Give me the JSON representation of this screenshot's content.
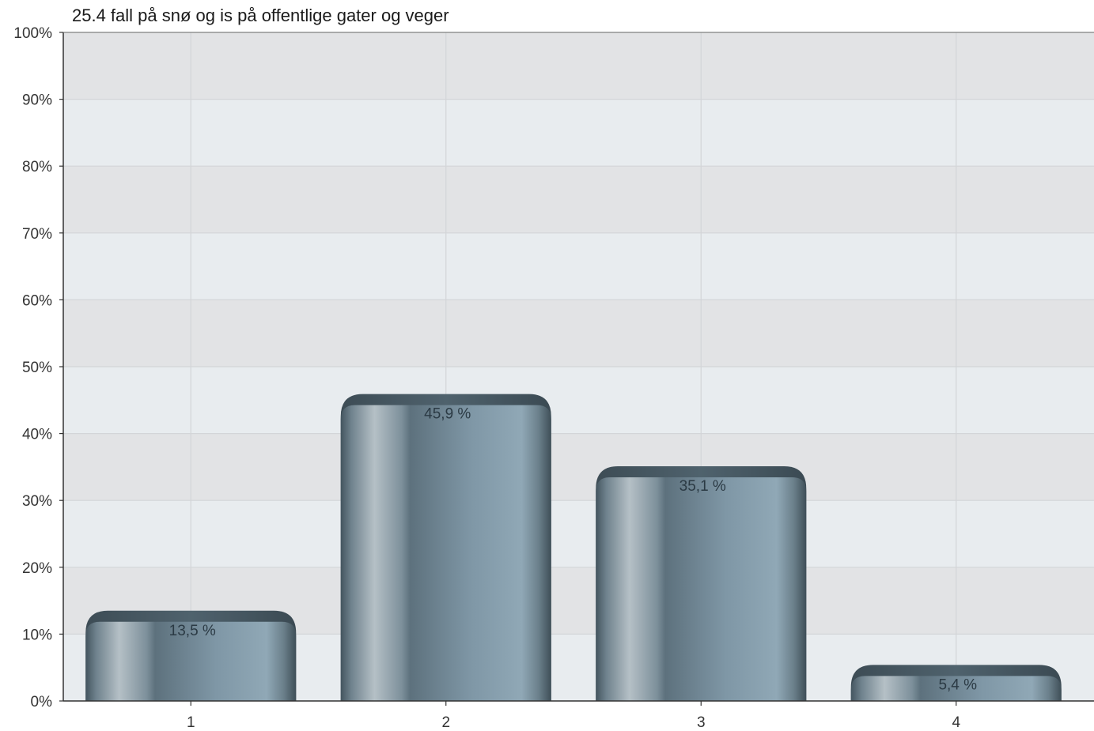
{
  "chart_data": {
    "type": "bar",
    "title": "25.4 fall på snø og is på offentlige gater og veger",
    "xlabel": "",
    "ylabel": "",
    "categories": [
      "1",
      "2",
      "3",
      "4"
    ],
    "values": [
      13.5,
      45.9,
      35.1,
      5.4
    ],
    "data_labels": [
      "13,5 %",
      "45,9 %",
      "35,1 %",
      "5,4 %"
    ],
    "ylim": [
      0,
      100
    ],
    "yticks": [
      0,
      10,
      20,
      30,
      40,
      50,
      60,
      70,
      80,
      90,
      100
    ],
    "ytick_labels": [
      "0%",
      "10%",
      "20%",
      "30%",
      "40%",
      "50%",
      "60%",
      "70%",
      "80%",
      "90%",
      "100%"
    ],
    "grid": true,
    "legend": "none",
    "colors": {
      "plot_bg_light": "#e8ecef",
      "plot_bg_dark": "#e2e3e5",
      "grid": "#d3d5d8",
      "axis": "#333333",
      "bar_dark": "#4f6470",
      "bar_mid": "#7790a0",
      "bar_light": "#b7c2c8",
      "bar_top": "#44555f"
    }
  }
}
